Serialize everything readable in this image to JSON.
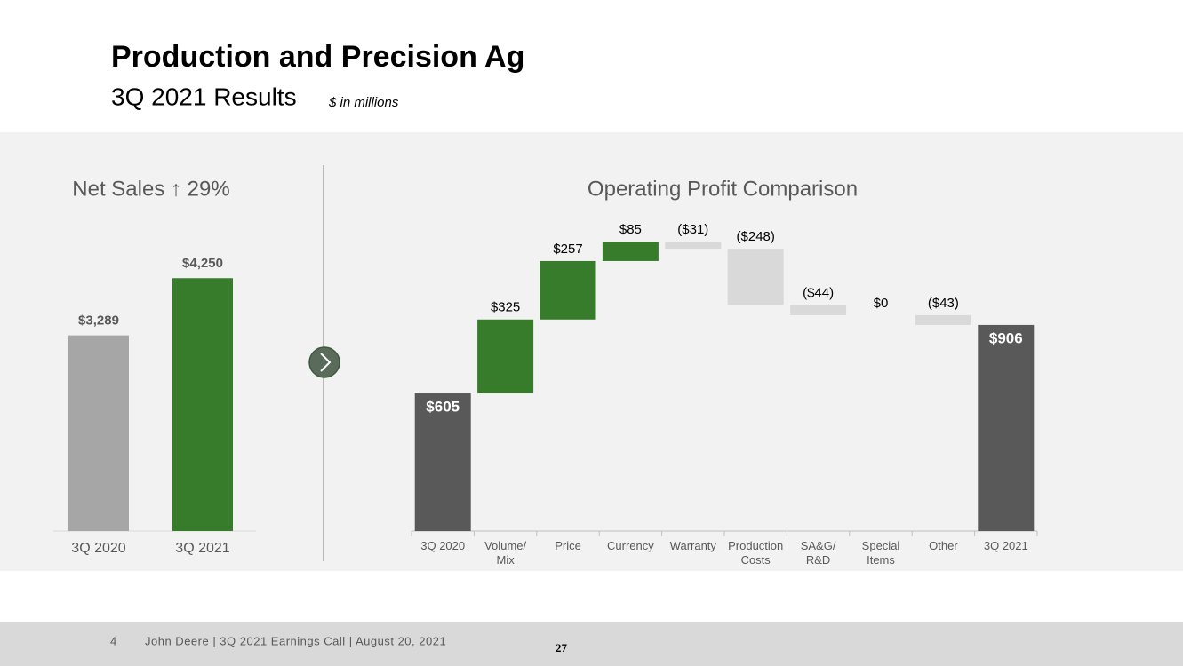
{
  "header": {
    "title": "Production and Precision Ag",
    "subtitle": "3Q 2021 Results",
    "note": "$ in millions"
  },
  "footer": {
    "page": "4",
    "text": "John Deere | 3Q 2021 Earnings Call | August 20, 2021",
    "number": "27"
  },
  "chart_data": [
    {
      "type": "bar",
      "title": "Net Sales ↑ 29%",
      "categories": [
        "3Q 2020",
        "3Q 2021"
      ],
      "values": [
        3289,
        4250
      ],
      "value_labels": [
        "$3,289",
        "$4,250"
      ],
      "colors": [
        "#a6a6a6",
        "#367c2b"
      ],
      "ylim": [
        0,
        4500
      ]
    },
    {
      "type": "waterfall",
      "title": "Operating Profit Comparison",
      "categories": [
        "3Q 2020",
        "Volume/\nMix",
        "Price",
        "Currency",
        "Warranty",
        "Production\nCosts",
        "SA&G/\nR&D",
        "Special\nItems",
        "Other",
        "3Q 2021"
      ],
      "values": [
        605,
        325,
        257,
        85,
        -31,
        -248,
        -44,
        0,
        -43,
        906
      ],
      "value_labels": [
        "$605",
        "$325",
        "$257",
        "$85",
        "($31)",
        "($248)",
        "($44)",
        "$0",
        "($43)",
        "$906"
      ],
      "totals": [
        true,
        false,
        false,
        false,
        false,
        false,
        false,
        false,
        false,
        true
      ],
      "colors": [
        "#595959",
        "#367c2b",
        "#367c2b",
        "#367c2b",
        "#d9d9d9",
        "#d9d9d9",
        "#d9d9d9",
        "#d9d9d9",
        "#d9d9d9",
        "#595959"
      ],
      "ylim": [
        0,
        1300
      ]
    }
  ]
}
